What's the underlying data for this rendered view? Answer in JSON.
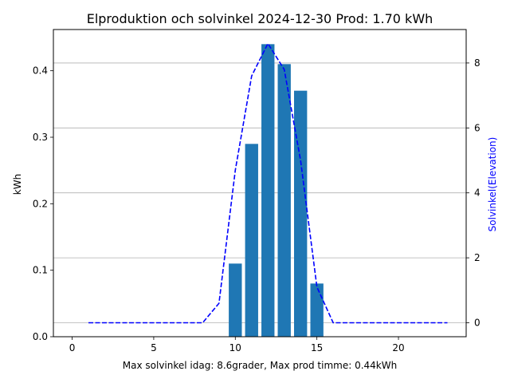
{
  "chart_data": {
    "type": "bar",
    "title": "Elproduktion och solvinkel 2024-12-30 Prod: 1.70 kWh",
    "xlabel": "Max solvinkel idag: 8.6grader, Max prod timme: 0.44kWh",
    "ylabel": "kWh",
    "y2label": "Solvinkel(Elevation)",
    "xlim": [
      -1.15,
      24.15
    ],
    "ylim": [
      0,
      0.462
    ],
    "y2lim": [
      -0.43,
      9.03
    ],
    "xticks": [
      0,
      5,
      10,
      15,
      20
    ],
    "yticks": [
      0.0,
      0.1,
      0.2,
      0.3,
      0.4
    ],
    "y2ticks": [
      0,
      2,
      4,
      6,
      8
    ],
    "grid": "horizontal (secondary axis)",
    "bar_color": "#1f77b4",
    "line_color": "#0000ff",
    "bars": {
      "name": "kWh",
      "x": [
        10,
        11,
        12,
        13,
        14,
        15
      ],
      "values": [
        0.11,
        0.29,
        0.44,
        0.41,
        0.37,
        0.08
      ]
    },
    "line": {
      "name": "Solvinkel",
      "style": "dashed",
      "x": [
        1,
        2,
        3,
        4,
        5,
        6,
        7,
        8,
        9,
        10,
        11,
        12,
        13,
        14,
        15,
        16,
        17,
        18,
        19,
        20,
        21,
        22,
        23
      ],
      "values": [
        0,
        0,
        0,
        0,
        0,
        0,
        0,
        0,
        0.6,
        4.7,
        7.6,
        8.6,
        7.8,
        5.0,
        1.1,
        0,
        0,
        0,
        0,
        0,
        0,
        0,
        0
      ]
    }
  }
}
